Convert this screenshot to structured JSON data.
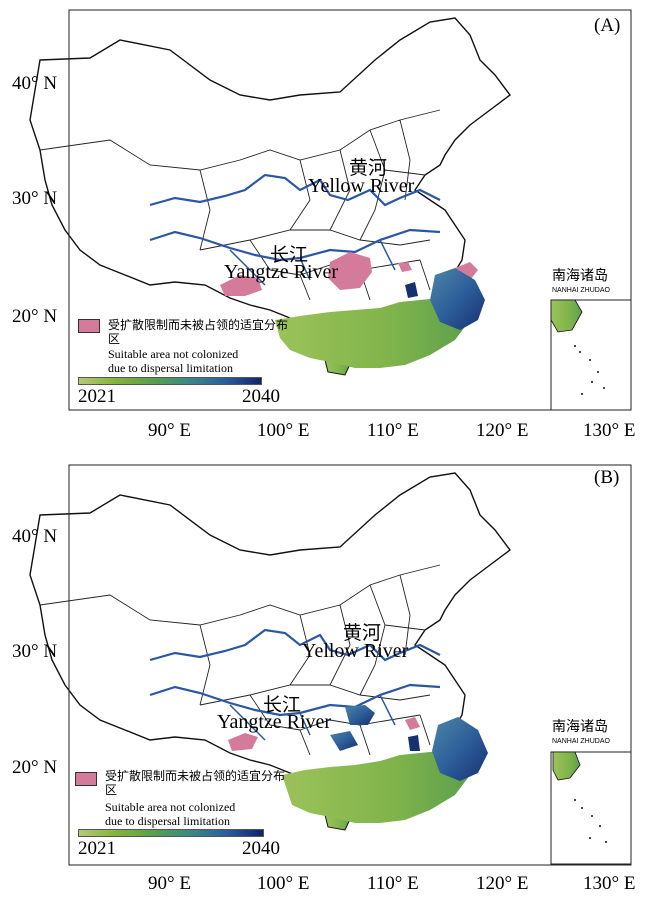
{
  "panels": [
    {
      "id": "(A)",
      "lat_ticks": [
        "40° N",
        "30° N",
        "20° N"
      ],
      "lon_ticks": [
        "90° E",
        "100° E",
        "110° E",
        "120° E",
        "130° E"
      ],
      "yellow_river": {
        "zh": "黄河",
        "en": "Yellow River"
      },
      "yangtze_river": {
        "zh": "长江",
        "en": "Yangtze River"
      },
      "inset": {
        "zh": "南海诸岛",
        "en": "NANHAI ZHUDAO"
      },
      "legend": {
        "zh": "受扩散限制而未被占领的适宜分布区",
        "en_line1": "Suitable area not colonized",
        "en_line2": "due to dispersal limitation",
        "ramp_start": "2021",
        "ramp_end": "2040"
      }
    },
    {
      "id": "(B)",
      "lat_ticks": [
        "40° N",
        "30° N",
        "20° N"
      ],
      "lon_ticks": [
        "90° E",
        "100° E",
        "110° E",
        "120° E",
        "130° E"
      ],
      "yellow_river": {
        "zh": "黄河",
        "en": "Yellow River"
      },
      "yangtze_river": {
        "zh": "长江",
        "en": "Yangtze River"
      },
      "inset": {
        "zh": "南海诸岛",
        "en": "NANHAI ZHUDAO"
      },
      "legend": {
        "zh": "受扩散限制而未被占领的适宜分布区",
        "en_line1": "Suitable area not colonized",
        "en_line2": "due to dispersal limitation",
        "ramp_start": "2021",
        "ramp_end": "2040"
      }
    }
  ],
  "colors": {
    "river": "#2b56a3",
    "dispersal_limited": "#d47b9c",
    "ramp_start": "#b5c979",
    "ramp_end": "#11236b"
  }
}
